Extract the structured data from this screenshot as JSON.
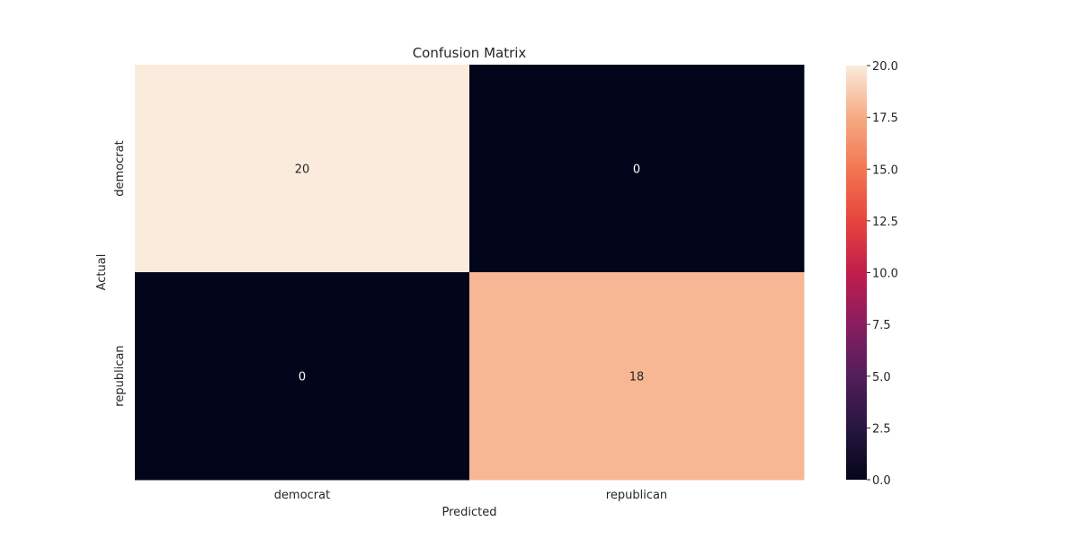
{
  "chart_data": {
    "type": "heatmap",
    "title": "Confusion Matrix",
    "xlabel": "Predicted",
    "ylabel": "Actual",
    "x_categories": [
      "democrat",
      "republican"
    ],
    "y_categories": [
      "democrat",
      "republican"
    ],
    "values": [
      [
        20,
        0
      ],
      [
        0,
        18
      ]
    ],
    "colorbar": {
      "min": 0.0,
      "max": 20.0,
      "ticks": [
        "0.0",
        "2.5",
        "5.0",
        "7.5",
        "10.0",
        "12.5",
        "15.0",
        "17.5",
        "20.0"
      ],
      "colormap": "rocket"
    },
    "annot_colors": {
      "on_dark": "#ffffff",
      "on_light": "#262626"
    },
    "grid": false
  }
}
